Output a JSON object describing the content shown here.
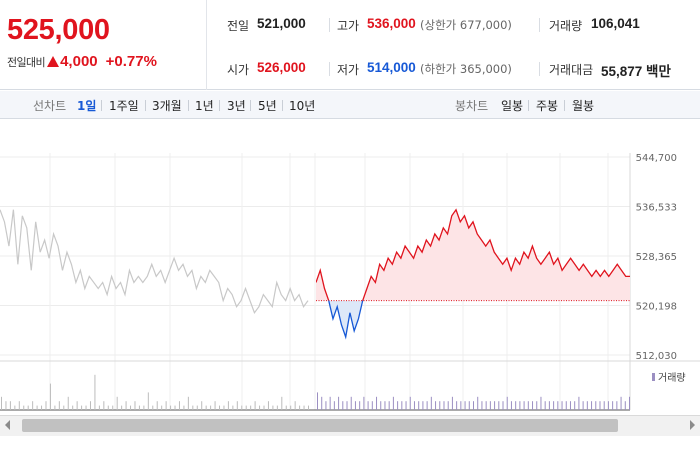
{
  "summary": {
    "price": "525,000",
    "change_label": "전일대비",
    "change_value": "4,000",
    "change_rate": "+0.77%",
    "change_direction": "up",
    "stats": {
      "prev_close": {
        "label": "전일",
        "value": "521,000"
      },
      "high": {
        "label": "고가",
        "value": "536,000",
        "sub": "(상한가 677,000)"
      },
      "volume": {
        "label": "거래량",
        "value": "106,041"
      },
      "open": {
        "label": "시가",
        "value": "526,000"
      },
      "low": {
        "label": "저가",
        "value": "514,000",
        "sub": "(하한가 365,000)"
      },
      "trade_value": {
        "label": "거래대금",
        "value": "55,877 백만"
      }
    }
  },
  "tabs": {
    "line_title": "선차트",
    "line_items": [
      "1일",
      "1주일",
      "3개월",
      "1년",
      "3년",
      "5년",
      "10년"
    ],
    "active_line_item": "1일",
    "candle_title": "봉차트",
    "candle_items": [
      "일봉",
      "주봉",
      "월봉"
    ]
  },
  "colors": {
    "up": "#e0141e",
    "down": "#1759d6",
    "prev_day_line": "#c8c8c8",
    "up_fill": "#fde4e6",
    "down_fill": "#dde8f8",
    "volume_bar": "#9b8fc2"
  },
  "chart_data": {
    "type": "line",
    "y_ticks": [
      "544,700",
      "536,533",
      "528,365",
      "520,198",
      "512,030"
    ],
    "ylim": [
      512030,
      544700
    ],
    "reference_line": 521000,
    "previous_session": [
      536000,
      534000,
      530000,
      536000,
      527000,
      535000,
      533000,
      526000,
      534000,
      529000,
      531000,
      528000,
      532000,
      530000,
      526000,
      529000,
      527000,
      524000,
      526000,
      523000,
      525000,
      524000,
      523000,
      524000,
      522000,
      525000,
      523000,
      524000,
      522000,
      526000,
      524000,
      525000,
      524000,
      525000,
      527000,
      525000,
      526000,
      524000,
      526000,
      528000,
      526000,
      527000,
      525000,
      526000,
      523000,
      525000,
      524000,
      526000,
      525000,
      524000,
      521000,
      523000,
      522000,
      520000,
      521000,
      523000,
      521000,
      519000,
      520000,
      522000,
      521000,
      520000,
      524000,
      522000,
      521000,
      523000,
      521000,
      522000,
      520000,
      521000
    ],
    "current_session": [
      524000,
      526000,
      523000,
      521000,
      518000,
      520000,
      517000,
      515000,
      519000,
      516000,
      518000,
      521000,
      523000,
      525000,
      524000,
      527000,
      526000,
      528000,
      527000,
      529000,
      528000,
      530000,
      529000,
      528000,
      530000,
      529000,
      531000,
      530000,
      532000,
      531000,
      533000,
      532000,
      535000,
      536000,
      534000,
      535000,
      533000,
      534000,
      532000,
      531000,
      530000,
      531000,
      529000,
      528000,
      527000,
      528000,
      526000,
      528000,
      527000,
      529000,
      528000,
      530000,
      528000,
      527000,
      528000,
      529000,
      527000,
      528000,
      526000,
      527000,
      528000,
      527000,
      526000,
      527000,
      526000,
      525000,
      526000,
      525000,
      526000,
      525000,
      526000,
      527000,
      526000,
      525000,
      525000
    ],
    "volume_label": "거래량",
    "volume_previous": [
      3,
      2,
      2,
      1,
      2,
      1,
      1,
      2,
      1,
      1,
      2,
      6,
      1,
      2,
      1,
      3,
      1,
      2,
      1,
      1,
      2,
      8,
      1,
      2,
      1,
      1,
      3,
      1,
      2,
      1,
      2,
      1,
      1,
      4,
      1,
      2,
      1,
      2,
      1,
      1,
      2,
      1,
      3,
      1,
      1,
      2,
      1,
      1,
      2,
      1,
      1,
      2,
      1,
      2,
      1,
      1,
      1,
      2,
      1,
      1,
      2,
      1,
      1,
      3,
      1,
      1,
      2,
      1,
      1,
      1
    ],
    "volume_current": [
      4,
      3,
      2,
      3,
      2,
      3,
      2,
      2,
      3,
      2,
      2,
      3,
      2,
      2,
      3,
      2,
      2,
      2,
      3,
      2,
      2,
      2,
      3,
      2,
      2,
      2,
      2,
      3,
      2,
      2,
      2,
      2,
      3,
      2,
      2,
      2,
      2,
      2,
      3,
      2,
      2,
      2,
      2,
      2,
      2,
      3,
      2,
      2,
      2,
      2,
      2,
      2,
      2,
      3,
      2,
      2,
      2,
      2,
      2,
      2,
      2,
      2,
      3,
      2,
      2,
      2,
      2,
      2,
      2,
      2,
      2,
      2,
      3,
      2,
      3
    ]
  }
}
